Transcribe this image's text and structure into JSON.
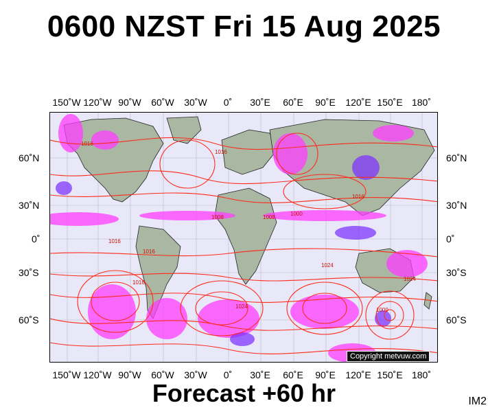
{
  "header": {
    "title": "0600 NZST Fri 15 Aug 2025"
  },
  "footer": {
    "forecast": "Forecast +60 hr",
    "image_code": "IM2"
  },
  "map": {
    "copyright": "Copyright metvuw.com",
    "lon_labels": [
      "150˚W",
      "120˚W",
      "90˚W",
      "60˚W",
      "30˚W",
      "0˚",
      "30˚E",
      "60˚E",
      "90˚E",
      "120˚E",
      "150˚E",
      "180˚"
    ],
    "lat_labels": [
      "60˚N",
      "30˚N",
      "0˚",
      "30˚S",
      "60˚S"
    ],
    "isobar_labels": [
      "1016",
      "1008",
      "1016",
      "1024",
      "1016",
      "1008",
      "1016",
      "1000",
      "1024",
      "1016",
      "1000",
      "1024",
      "1016"
    ],
    "colors": {
      "isobar": "#ff2a1a",
      "ocean": "#e8e8f8",
      "land": "#a9b7a3",
      "rain_light": "#ff3cff",
      "rain_heavy": "#7a2bff"
    }
  }
}
